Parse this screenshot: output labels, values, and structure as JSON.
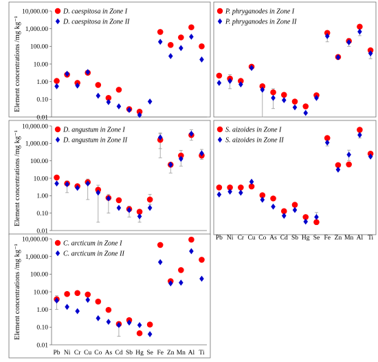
{
  "colors": {
    "zone1": "#ff0000",
    "zone2": "#0000cc",
    "error": "#999999"
  },
  "y_tick_labels": [
    "10,000.00",
    "1,000.00",
    "100.00",
    "10.00",
    "1.00",
    "0.10",
    "0.01"
  ],
  "chart_data": [
    {
      "type": "scatter",
      "panel": "top-left",
      "ylabel": "Element concentrations /mg kg⁻¹",
      "yscale": "log",
      "ylim": [
        0.01,
        10000
      ],
      "categories": [
        "Pb",
        "Ni",
        "Cr",
        "Cu",
        "Co",
        "As",
        "Cd",
        "Sb",
        "Hg",
        "Se",
        "Fe",
        "Zn",
        "Mn",
        "Al",
        "Ti"
      ],
      "show_x_labels": false,
      "legend_position": "top-left",
      "series": [
        {
          "name": "D. caespitosa in Zone I",
          "color": "#ff0000",
          "marker": "circle",
          "values": [
            1.1,
            2.5,
            0.85,
            3.2,
            0.65,
            0.12,
            0.35,
            0.028,
            0.02,
            null,
            650,
            120,
            320,
            1200,
            100
          ],
          "error": [
            null,
            null,
            null,
            null,
            null,
            null,
            null,
            null,
            null,
            null,
            null,
            null,
            null,
            null,
            null
          ]
        },
        {
          "name": "D. caespitosa in Zone II",
          "color": "#0000cc",
          "marker": "diamond",
          "values": [
            0.55,
            2.8,
            0.6,
            3.5,
            0.16,
            0.07,
            0.04,
            0.025,
            0.013,
            0.075,
            180,
            28,
            80,
            350,
            18
          ],
          "error": [
            null,
            null,
            null,
            null,
            null,
            null,
            null,
            null,
            null,
            null,
            null,
            null,
            null,
            null,
            null
          ]
        }
      ]
    },
    {
      "type": "scatter",
      "panel": "top-right",
      "ylabel": "",
      "yscale": "log",
      "ylim": [
        0.01,
        10000
      ],
      "categories": [
        "Pb",
        "Ni",
        "Cr",
        "Cu",
        "Co",
        "As",
        "Cd",
        "Sb",
        "Hg",
        "Se",
        "Fe",
        "Zn",
        "Mn",
        "Al",
        "Ti"
      ],
      "show_x_labels": false,
      "legend_position": "top-left",
      "series": [
        {
          "name": "P. phryganodes in Zone I",
          "color": "#ff0000",
          "marker": "circle",
          "values": [
            2.2,
            1.5,
            1.1,
            7.0,
            0.55,
            0.25,
            0.18,
            0.075,
            0.04,
            0.17,
            580,
            25,
            200,
            1300,
            60
          ],
          "error": [
            null,
            null,
            null,
            null,
            null,
            null,
            null,
            null,
            null,
            null,
            null,
            null,
            null,
            null,
            null
          ]
        },
        {
          "name": "P. phryganodes in Zone II",
          "color": "#0000cc",
          "marker": "diamond",
          "values": [
            0.85,
            1.1,
            0.7,
            6.0,
            0.35,
            0.12,
            0.09,
            0.035,
            0.017,
            0.12,
            380,
            24,
            170,
            680,
            40
          ],
          "error": [
            null,
            [
              0.4,
              2.5
            ],
            null,
            null,
            [
              0.01,
              0.6
            ],
            [
              0.03,
              0.4
            ],
            null,
            null,
            null,
            null,
            [
              180,
              700
            ],
            null,
            [
              100,
              280
            ],
            [
              400,
              1100
            ],
            [
              20,
              60
            ]
          ]
        }
      ]
    },
    {
      "type": "scatter",
      "panel": "middle-left",
      "ylabel": "Element concentrations /mg kg⁻¹",
      "yscale": "log",
      "ylim": [
        0.01,
        10000
      ],
      "categories": [
        "Pb",
        "Ni",
        "Cr",
        "Cu",
        "Co",
        "As",
        "Cd",
        "Sb",
        "Hg",
        "Se",
        "Fe",
        "Zn",
        "Mn",
        "Al",
        "Ti"
      ],
      "show_x_labels": false,
      "legend_position": "top-left",
      "series": [
        {
          "name": "D. angustum in Zone I",
          "color": "#ff0000",
          "marker": "circle",
          "values": [
            11,
            5.0,
            3.5,
            6.0,
            2.2,
            0.75,
            0.55,
            0.17,
            0.12,
            0.6,
            1600,
            60,
            200,
            3000,
            200
          ],
          "error": [
            null,
            null,
            null,
            null,
            null,
            null,
            null,
            null,
            null,
            [
              0.3,
              1.2
            ],
            [
              150,
              4000
            ],
            null,
            null,
            null,
            null
          ]
        },
        {
          "name": "D. angustum in Zone II",
          "color": "#0000cc",
          "marker": "diamond",
          "values": [
            5.0,
            4.5,
            2.8,
            5.0,
            1.5,
            0.7,
            0.2,
            0.15,
            0.065,
            0.2,
            2200,
            60,
            130,
            3600,
            270
          ],
          "error": [
            null,
            [
              1.5,
              7
            ],
            null,
            [
              0.6,
              9
            ],
            [
              0.03,
              4
            ],
            [
              0.1,
              1.2
            ],
            null,
            [
              0.06,
              0.25
            ],
            [
              0.03,
              0.1
            ],
            null,
            [
              500,
              3500
            ],
            [
              20,
              80
            ],
            [
              50,
              400
            ],
            [
              1500,
              6000
            ],
            [
              120,
              450
            ]
          ]
        }
      ]
    },
    {
      "type": "scatter",
      "panel": "middle-right",
      "ylabel": "",
      "yscale": "log",
      "ylim": [
        0.01,
        10000
      ],
      "categories": [
        "Pb",
        "Ni",
        "Cr",
        "Cu",
        "Co",
        "As",
        "Cd",
        "Sb",
        "Hg",
        "Se",
        "Fe",
        "Zn",
        "Mn",
        "Al",
        "Ti"
      ],
      "show_x_labels": true,
      "legend_position": "top-left",
      "series": [
        {
          "name": "S. aizoides in Zone I",
          "color": "#ff0000",
          "marker": "circle",
          "values": [
            2.8,
            2.8,
            2.8,
            3.2,
            1.0,
            0.65,
            0.12,
            0.28,
            0.055,
            0.028,
            2000,
            55,
            60,
            6000,
            250
          ],
          "error": [
            null,
            null,
            null,
            null,
            null,
            null,
            null,
            null,
            null,
            null,
            null,
            null,
            null,
            null,
            null
          ]
        },
        {
          "name": "S. aizoides in Zone II",
          "color": "#0000cc",
          "marker": "diamond",
          "values": [
            1.1,
            1.6,
            1.4,
            6.0,
            0.55,
            0.22,
            0.065,
            0.14,
            0.03,
            0.055,
            1100,
            30,
            220,
            3000,
            170
          ],
          "error": [
            null,
            null,
            null,
            null,
            null,
            null,
            null,
            null,
            null,
            [
              0.02,
              0.1
            ],
            [
              700,
              1500
            ],
            null,
            [
              100,
              400
            ],
            [
              2000,
              4000
            ],
            null
          ]
        }
      ]
    },
    {
      "type": "scatter",
      "panel": "bottom-left",
      "ylabel": "Element concentrations /mg kg⁻¹",
      "yscale": "log",
      "ylim": [
        0.01,
        10000
      ],
      "categories": [
        "Pb",
        "Ni",
        "Cr",
        "Cu",
        "Co",
        "As",
        "Cd",
        "Sb",
        "Hg",
        "Se",
        "Fe",
        "Zn",
        "Mn",
        "Al",
        "Ti"
      ],
      "show_x_labels": true,
      "legend_position": "top-left",
      "series": [
        {
          "name": "C. arcticum in Zone I",
          "color": "#ff0000",
          "marker": "circle",
          "values": [
            3.8,
            7.5,
            8.5,
            7.0,
            2.8,
            0.95,
            0.15,
            0.25,
            0.045,
            0.14,
            4500,
            40,
            170,
            9000,
            650
          ],
          "error": [
            [
              1,
              6
            ],
            null,
            null,
            null,
            null,
            null,
            [
              0.03,
              0.2
            ],
            null,
            null,
            null,
            null,
            null,
            null,
            null,
            null
          ]
        },
        {
          "name": "C. arcticum in Zone II",
          "color": "#0000cc",
          "marker": "diamond",
          "values": [
            3.2,
            1.4,
            0.8,
            3.5,
            0.32,
            0.2,
            0.13,
            0.18,
            0.13,
            0.04,
            480,
            30,
            33,
            2000,
            55
          ],
          "error": [
            null,
            null,
            null,
            null,
            null,
            null,
            null,
            null,
            null,
            null,
            null,
            null,
            null,
            null,
            null
          ]
        }
      ]
    }
  ]
}
